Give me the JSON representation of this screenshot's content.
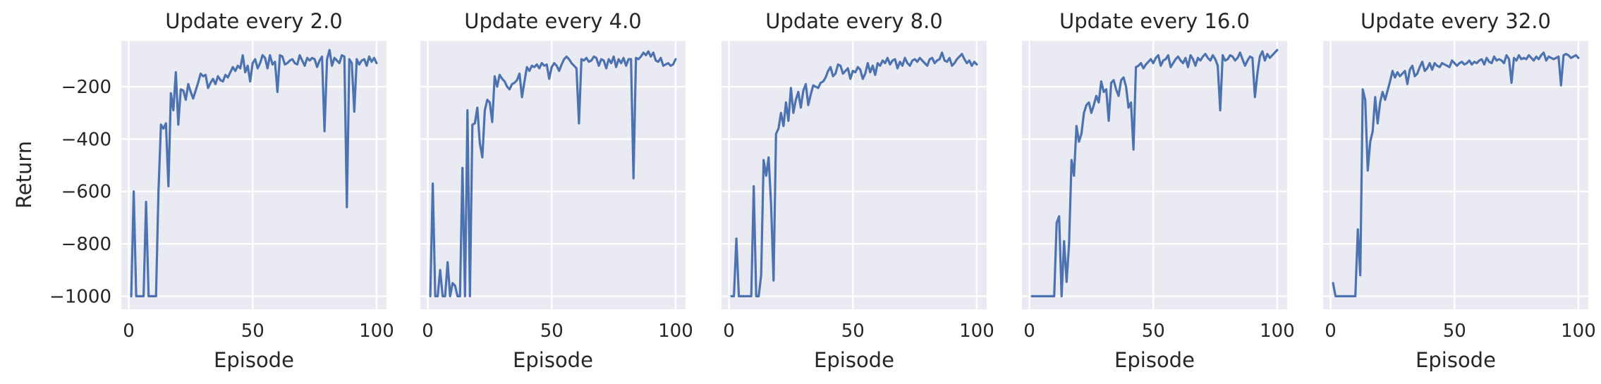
{
  "figure": {
    "ylabel": "Return",
    "xlabel": "Episode"
  },
  "colors": {
    "line": "#4C72B0",
    "panel_background": "#EAEAF2",
    "grid": "#FFFFFF",
    "text": "#262626"
  },
  "chart_data": [
    {
      "type": "line",
      "title": "Update every 2.0",
      "xlabel": "Episode",
      "ylabel": "Return",
      "xlim": [
        -3,
        104
      ],
      "ylim": [
        -1050,
        -25
      ],
      "xticks": [
        0,
        50,
        100
      ],
      "yticks": [
        -1000,
        -800,
        -600,
        -400,
        -200
      ],
      "grid": true,
      "x": [
        1,
        2,
        3,
        4,
        5,
        6,
        7,
        8,
        9,
        10,
        11,
        12,
        13,
        14,
        15,
        16,
        17,
        18,
        19,
        20,
        21,
        22,
        23,
        24,
        25,
        26,
        27,
        28,
        29,
        30,
        31,
        32,
        33,
        34,
        35,
        36,
        37,
        38,
        39,
        40,
        41,
        42,
        43,
        44,
        45,
        46,
        47,
        48,
        49,
        50,
        51,
        52,
        53,
        54,
        55,
        56,
        57,
        58,
        59,
        60,
        61,
        62,
        63,
        64,
        65,
        66,
        67,
        68,
        69,
        70,
        71,
        72,
        73,
        74,
        75,
        76,
        77,
        78,
        79,
        80,
        81,
        82,
        83,
        84,
        85,
        86,
        87,
        88,
        89,
        90,
        91,
        92,
        93,
        94,
        95,
        96,
        97,
        98,
        99,
        100
      ],
      "series": [
        {
          "values": [
            -1000,
            -600,
            -1000,
            -1000,
            -1000,
            -1000,
            -640,
            -1000,
            -1000,
            -1000,
            -1000,
            -600,
            -345,
            -360,
            -340,
            -580,
            -225,
            -290,
            -145,
            -345,
            -210,
            -215,
            -250,
            -190,
            -220,
            -245,
            -215,
            -185,
            -150,
            -160,
            -155,
            -205,
            -185,
            -170,
            -190,
            -160,
            -175,
            -180,
            -155,
            -165,
            -145,
            -125,
            -140,
            -120,
            -130,
            -80,
            -145,
            -120,
            -180,
            -110,
            -95,
            -130,
            -110,
            -80,
            -90,
            -130,
            -80,
            -115,
            -105,
            -220,
            -80,
            -85,
            -115,
            -110,
            -100,
            -95,
            -110,
            -115,
            -80,
            -100,
            -120,
            -90,
            -100,
            -90,
            -95,
            -125,
            -100,
            -85,
            -370,
            -95,
            -60,
            -120,
            -90,
            -100,
            -110,
            -80,
            -85,
            -660,
            -95,
            -110,
            -295,
            -95,
            -115,
            -100,
            -95,
            -120,
            -85,
            -105,
            -90,
            -110
          ]
        }
      ]
    },
    {
      "type": "line",
      "title": "Update every 4.0",
      "xlabel": "Episode",
      "ylabel": "",
      "xlim": [
        -3,
        104
      ],
      "ylim": [
        -1050,
        -25
      ],
      "xticks": [
        0,
        50,
        100
      ],
      "yticks": [
        -1000,
        -800,
        -600,
        -400,
        -200
      ],
      "grid": true,
      "x": [
        1,
        2,
        3,
        4,
        5,
        6,
        7,
        8,
        9,
        10,
        11,
        12,
        13,
        14,
        15,
        16,
        17,
        18,
        19,
        20,
        21,
        22,
        23,
        24,
        25,
        26,
        27,
        28,
        29,
        30,
        31,
        32,
        33,
        34,
        35,
        36,
        37,
        38,
        39,
        40,
        41,
        42,
        43,
        44,
        45,
        46,
        47,
        48,
        49,
        50,
        51,
        52,
        53,
        54,
        55,
        56,
        57,
        58,
        59,
        60,
        61,
        62,
        63,
        64,
        65,
        66,
        67,
        68,
        69,
        70,
        71,
        72,
        73,
        74,
        75,
        76,
        77,
        78,
        79,
        80,
        81,
        82,
        83,
        84,
        85,
        86,
        87,
        88,
        89,
        90,
        91,
        92,
        93,
        94,
        95,
        96,
        97,
        98,
        99,
        100
      ],
      "series": [
        {
          "values": [
            -1000,
            -570,
            -1000,
            -1000,
            -900,
            -1000,
            -1000,
            -870,
            -1000,
            -950,
            -960,
            -1000,
            -1000,
            -510,
            -1000,
            -290,
            -1000,
            -345,
            -340,
            -280,
            -415,
            -470,
            -290,
            -250,
            -260,
            -335,
            -160,
            -200,
            -155,
            -170,
            -180,
            -200,
            -210,
            -190,
            -185,
            -175,
            -150,
            -240,
            -180,
            -125,
            -140,
            -120,
            -125,
            -115,
            -130,
            -110,
            -120,
            -115,
            -170,
            -125,
            -110,
            -120,
            -140,
            -115,
            -95,
            -85,
            -95,
            -110,
            -120,
            -130,
            -340,
            -95,
            -100,
            -90,
            -105,
            -100,
            -85,
            -90,
            -120,
            -95,
            -100,
            -130,
            -95,
            -110,
            -85,
            -125,
            -95,
            -110,
            -90,
            -120,
            -95,
            -95,
            -550,
            -90,
            -95,
            -85,
            -70,
            -80,
            -65,
            -85,
            -70,
            -100,
            -105,
            -90,
            -120,
            -115,
            -110,
            -120,
            -115,
            -95
          ]
        }
      ]
    },
    {
      "type": "line",
      "title": "Update every 8.0",
      "xlabel": "Episode",
      "ylabel": "",
      "xlim": [
        -3,
        104
      ],
      "ylim": [
        -1050,
        -25
      ],
      "xticks": [
        0,
        50,
        100
      ],
      "yticks": [
        -1000,
        -800,
        -600,
        -400,
        -200
      ],
      "grid": true,
      "x": [
        1,
        2,
        3,
        4,
        5,
        6,
        7,
        8,
        9,
        10,
        11,
        12,
        13,
        14,
        15,
        16,
        17,
        18,
        19,
        20,
        21,
        22,
        23,
        24,
        25,
        26,
        27,
        28,
        29,
        30,
        31,
        32,
        33,
        34,
        35,
        36,
        37,
        38,
        39,
        40,
        41,
        42,
        43,
        44,
        45,
        46,
        47,
        48,
        49,
        50,
        51,
        52,
        53,
        54,
        55,
        56,
        57,
        58,
        59,
        60,
        61,
        62,
        63,
        64,
        65,
        66,
        67,
        68,
        69,
        70,
        71,
        72,
        73,
        74,
        75,
        76,
        77,
        78,
        79,
        80,
        81,
        82,
        83,
        84,
        85,
        86,
        87,
        88,
        89,
        90,
        91,
        92,
        93,
        94,
        95,
        96,
        97,
        98,
        99,
        100
      ],
      "series": [
        {
          "values": [
            -1000,
            -1000,
            -780,
            -1000,
            -1000,
            -1000,
            -1000,
            -1000,
            -1000,
            -580,
            -1000,
            -1000,
            -920,
            -480,
            -540,
            -470,
            -650,
            -940,
            -380,
            -360,
            -300,
            -350,
            -260,
            -330,
            -205,
            -300,
            -250,
            -220,
            -280,
            -215,
            -190,
            -270,
            -230,
            -195,
            -200,
            -205,
            -185,
            -180,
            -165,
            -140,
            -125,
            -160,
            -150,
            -115,
            -120,
            -150,
            -140,
            -130,
            -170,
            -140,
            -145,
            -125,
            -135,
            -170,
            -150,
            -110,
            -145,
            -120,
            -155,
            -110,
            -120,
            -100,
            -110,
            -90,
            -115,
            -100,
            -95,
            -130,
            -105,
            -120,
            -90,
            -110,
            -120,
            -100,
            -95,
            -105,
            -90,
            -100,
            -110,
            -120,
            -95,
            -90,
            -110,
            -100,
            -95,
            -70,
            -100,
            -105,
            -90,
            -120,
            -110,
            -95,
            -85,
            -75,
            -95,
            -110,
            -100,
            -120,
            -105,
            -115
          ]
        }
      ]
    },
    {
      "type": "line",
      "title": "Update every 16.0",
      "xlabel": "Episode",
      "ylabel": "",
      "xlim": [
        -3,
        104
      ],
      "ylim": [
        -1050,
        -25
      ],
      "xticks": [
        0,
        50,
        100
      ],
      "yticks": [
        -1000,
        -800,
        -600,
        -400,
        -200
      ],
      "grid": true,
      "x": [
        1,
        2,
        3,
        4,
        5,
        6,
        7,
        8,
        9,
        10,
        11,
        12,
        13,
        14,
        15,
        16,
        17,
        18,
        19,
        20,
        21,
        22,
        23,
        24,
        25,
        26,
        27,
        28,
        29,
        30,
        31,
        32,
        33,
        34,
        35,
        36,
        37,
        38,
        39,
        40,
        41,
        42,
        43,
        44,
        45,
        46,
        47,
        48,
        49,
        50,
        51,
        52,
        53,
        54,
        55,
        56,
        57,
        58,
        59,
        60,
        61,
        62,
        63,
        64,
        65,
        66,
        67,
        68,
        69,
        70,
        71,
        72,
        73,
        74,
        75,
        76,
        77,
        78,
        79,
        80,
        81,
        82,
        83,
        84,
        85,
        86,
        87,
        88,
        89,
        90,
        91,
        92,
        93,
        94,
        95,
        96,
        97,
        98,
        99,
        100
      ],
      "series": [
        {
          "values": [
            -1000,
            -1000,
            -1000,
            -1000,
            -1000,
            -1000,
            -1000,
            -1000,
            -1000,
            -1000,
            -720,
            -695,
            -1000,
            -790,
            -945,
            -800,
            -480,
            -540,
            -350,
            -410,
            -380,
            -300,
            -270,
            -260,
            -300,
            -270,
            -235,
            -260,
            -180,
            -220,
            -210,
            -330,
            -185,
            -175,
            -210,
            -235,
            -175,
            -165,
            -200,
            -280,
            -260,
            -440,
            -125,
            -120,
            -110,
            -130,
            -115,
            -105,
            -95,
            -110,
            -90,
            -80,
            -120,
            -100,
            -95,
            -80,
            -125,
            -110,
            -95,
            -85,
            -100,
            -110,
            -90,
            -125,
            -80,
            -95,
            -120,
            -90,
            -100,
            -85,
            -75,
            -90,
            -100,
            -80,
            -95,
            -120,
            -290,
            -80,
            -100,
            -95,
            -80,
            -85,
            -100,
            -90,
            -70,
            -95,
            -120,
            -100,
            -85,
            -90,
            -240,
            -150,
            -85,
            -65,
            -100,
            -75,
            -90,
            -80,
            -70,
            -60
          ]
        }
      ]
    },
    {
      "type": "line",
      "title": "Update every 32.0",
      "xlabel": "Episode",
      "ylabel": "",
      "xlim": [
        -3,
        104
      ],
      "ylim": [
        -1050,
        -25
      ],
      "xticks": [
        0,
        50,
        100
      ],
      "yticks": [
        -1000,
        -800,
        -600,
        -400,
        -200
      ],
      "grid": true,
      "x": [
        1,
        2,
        3,
        4,
        5,
        6,
        7,
        8,
        9,
        10,
        11,
        12,
        13,
        14,
        15,
        16,
        17,
        18,
        19,
        20,
        21,
        22,
        23,
        24,
        25,
        26,
        27,
        28,
        29,
        30,
        31,
        32,
        33,
        34,
        35,
        36,
        37,
        38,
        39,
        40,
        41,
        42,
        43,
        44,
        45,
        46,
        47,
        48,
        49,
        50,
        51,
        52,
        53,
        54,
        55,
        56,
        57,
        58,
        59,
        60,
        61,
        62,
        63,
        64,
        65,
        66,
        67,
        68,
        69,
        70,
        71,
        72,
        73,
        74,
        75,
        76,
        77,
        78,
        79,
        80,
        81,
        82,
        83,
        84,
        85,
        86,
        87,
        88,
        89,
        90,
        91,
        92,
        93,
        94,
        95,
        96,
        97,
        98,
        99,
        100
      ],
      "series": [
        {
          "values": [
            -950,
            -1000,
            -1000,
            -1000,
            -1000,
            -1000,
            -1000,
            -1000,
            -1000,
            -1000,
            -745,
            -920,
            -210,
            -250,
            -520,
            -410,
            -370,
            -240,
            -340,
            -260,
            -220,
            -250,
            -215,
            -180,
            -140,
            -165,
            -145,
            -160,
            -150,
            -140,
            -190,
            -135,
            -120,
            -160,
            -150,
            -125,
            -105,
            -140,
            -130,
            -110,
            -135,
            -110,
            -120,
            -125,
            -110,
            -115,
            -120,
            -125,
            -100,
            -110,
            -120,
            -110,
            -105,
            -115,
            -110,
            -100,
            -115,
            -105,
            -110,
            -100,
            -95,
            -115,
            -90,
            -105,
            -110,
            -85,
            -100,
            -95,
            -100,
            -110,
            -80,
            -95,
            -185,
            -90,
            -100,
            -80,
            -95,
            -90,
            -95,
            -80,
            -90,
            -100,
            -85,
            -95,
            -80,
            -70,
            -100,
            -85,
            -90,
            -95,
            -90,
            -85,
            -195,
            -80,
            -75,
            -80,
            -90,
            -85,
            -80,
            -90
          ]
        }
      ]
    }
  ]
}
